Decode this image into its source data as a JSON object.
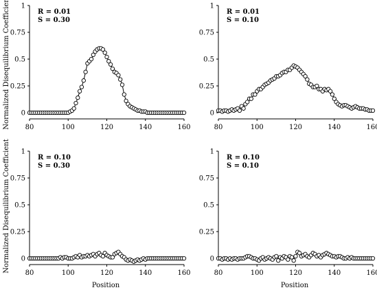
{
  "figure": {
    "ylabel": "Normalized Disequilibrium Coefficient",
    "xlabel": "Position"
  },
  "chart_data": [
    {
      "type": "line",
      "annotation": [
        "R  =  0.01",
        "S  =  0.30"
      ],
      "xlim": [
        80,
        160
      ],
      "ylim": [
        0,
        1
      ],
      "xticks": [
        80,
        100,
        120,
        140,
        160
      ],
      "yticks": [
        0,
        0.25,
        0.5,
        0.75,
        1
      ],
      "xtick_labels": [
        "80",
        "100",
        "120",
        "140",
        "160"
      ],
      "ytick_labels": [
        "0",
        "0.25",
        "0.5",
        "0.75",
        "1"
      ],
      "x": [
        80,
        81,
        82,
        83,
        84,
        85,
        86,
        87,
        88,
        89,
        90,
        91,
        92,
        93,
        94,
        95,
        96,
        97,
        98,
        99,
        100,
        101,
        102,
        103,
        104,
        105,
        106,
        107,
        108,
        109,
        110,
        111,
        112,
        113,
        114,
        115,
        116,
        117,
        118,
        119,
        120,
        121,
        122,
        123,
        124,
        125,
        126,
        127,
        128,
        129,
        130,
        131,
        132,
        133,
        134,
        135,
        136,
        137,
        138,
        139,
        140,
        141,
        142,
        143,
        144,
        145,
        146,
        147,
        148,
        149,
        150,
        151,
        152,
        153,
        154,
        155,
        156,
        157,
        158,
        159,
        160
      ],
      "y": [
        0,
        0,
        0,
        0,
        0,
        0,
        0,
        0,
        0,
        0,
        0,
        0,
        0,
        0,
        0,
        0,
        0,
        0,
        0,
        0,
        0,
        0.01,
        0.02,
        0.04,
        0.09,
        0.14,
        0.2,
        0.24,
        0.3,
        0.38,
        0.46,
        0.48,
        0.5,
        0.54,
        0.57,
        0.59,
        0.6,
        0.6,
        0.59,
        0.56,
        0.52,
        0.48,
        0.45,
        0.41,
        0.38,
        0.37,
        0.35,
        0.31,
        0.26,
        0.17,
        0.11,
        0.08,
        0.06,
        0.05,
        0.04,
        0.03,
        0.02,
        0.02,
        0.01,
        0.01,
        0.01,
        0,
        0,
        0,
        0,
        0,
        0,
        0,
        0,
        0,
        0,
        0,
        0,
        0,
        0,
        0,
        0,
        0,
        0,
        0,
        0
      ]
    },
    {
      "type": "line",
      "annotation": [
        "R  =  0.01",
        "S  =  0.10"
      ],
      "xlim": [
        80,
        160
      ],
      "ylim": [
        0,
        1
      ],
      "xticks": [
        80,
        100,
        120,
        140,
        160
      ],
      "yticks": [
        0,
        0.25,
        0.5,
        0.75,
        1
      ],
      "xtick_labels": [
        "80",
        "100",
        "120",
        "140",
        "160"
      ],
      "ytick_labels": [
        "0",
        "0.25",
        "0.5",
        "0.75",
        "1"
      ],
      "x": [
        80,
        81,
        82,
        83,
        84,
        85,
        86,
        87,
        88,
        89,
        90,
        91,
        92,
        93,
        94,
        95,
        96,
        97,
        98,
        99,
        100,
        101,
        102,
        103,
        104,
        105,
        106,
        107,
        108,
        109,
        110,
        111,
        112,
        113,
        114,
        115,
        116,
        117,
        118,
        119,
        120,
        121,
        122,
        123,
        124,
        125,
        126,
        127,
        128,
        129,
        130,
        131,
        132,
        133,
        134,
        135,
        136,
        137,
        138,
        139,
        140,
        141,
        142,
        143,
        144,
        145,
        146,
        147,
        148,
        149,
        150,
        151,
        152,
        153,
        154,
        155,
        156,
        157,
        158,
        159,
        160
      ],
      "y": [
        0.02,
        0.02,
        0.01,
        0.02,
        0.02,
        0.01,
        0.02,
        0.03,
        0.02,
        0.03,
        0.04,
        0.02,
        0.06,
        0.04,
        0.08,
        0.1,
        0.13,
        0.13,
        0.17,
        0.17,
        0.2,
        0.22,
        0.22,
        0.24,
        0.26,
        0.27,
        0.28,
        0.3,
        0.31,
        0.32,
        0.34,
        0.34,
        0.35,
        0.37,
        0.38,
        0.38,
        0.4,
        0.4,
        0.42,
        0.44,
        0.43,
        0.42,
        0.4,
        0.38,
        0.36,
        0.34,
        0.31,
        0.27,
        0.26,
        0.24,
        0.24,
        0.25,
        0.22,
        0.22,
        0.2,
        0.22,
        0.21,
        0.22,
        0.2,
        0.17,
        0.13,
        0.1,
        0.08,
        0.07,
        0.06,
        0.07,
        0.07,
        0.06,
        0.05,
        0.04,
        0.05,
        0.06,
        0.05,
        0.04,
        0.04,
        0.04,
        0.03,
        0.03,
        0.02,
        0.02,
        0.02
      ]
    },
    {
      "type": "line",
      "annotation": [
        "R  =  0.10",
        "S  =  0.30"
      ],
      "xlim": [
        80,
        160
      ],
      "ylim": [
        0,
        1
      ],
      "xticks": [
        80,
        100,
        120,
        140,
        160
      ],
      "yticks": [
        0,
        0.25,
        0.5,
        0.75,
        1
      ],
      "xtick_labels": [
        "80",
        "100",
        "120",
        "140",
        "160"
      ],
      "ytick_labels": [
        "0",
        "0.25",
        "0.5",
        "0.75",
        "1"
      ],
      "x": [
        80,
        81,
        82,
        83,
        84,
        85,
        86,
        87,
        88,
        89,
        90,
        91,
        92,
        93,
        94,
        95,
        96,
        97,
        98,
        99,
        100,
        101,
        102,
        103,
        104,
        105,
        106,
        107,
        108,
        109,
        110,
        111,
        112,
        113,
        114,
        115,
        116,
        117,
        118,
        119,
        120,
        121,
        122,
        123,
        124,
        125,
        126,
        127,
        128,
        129,
        130,
        131,
        132,
        133,
        134,
        135,
        136,
        137,
        138,
        139,
        140,
        141,
        142,
        143,
        144,
        145,
        146,
        147,
        148,
        149,
        150,
        151,
        152,
        153,
        154,
        155,
        156,
        157,
        158,
        159,
        160
      ],
      "y": [
        0,
        0,
        0,
        0,
        0,
        0,
        0,
        0,
        0,
        0,
        0,
        0,
        0,
        0,
        0,
        0,
        0.01,
        0,
        0.01,
        0.01,
        0,
        0,
        0,
        0.01,
        0.02,
        0.01,
        0.03,
        0.01,
        0.02,
        0.02,
        0.03,
        0.02,
        0.03,
        0.04,
        0.02,
        0.04,
        0.05,
        0.03,
        0.02,
        0.05,
        0.03,
        0.02,
        0.01,
        0.01,
        0.04,
        0.05,
        0.06,
        0.04,
        0.02,
        0.01,
        -0.01,
        -0.02,
        -0.01,
        -0.02,
        -0.03,
        -0.02,
        -0.01,
        -0.02,
        -0.01,
        0,
        -0.01,
        0,
        0,
        0,
        0,
        0,
        0,
        0,
        0,
        0,
        0,
        0,
        0,
        0,
        0,
        0,
        0,
        0,
        0,
        0,
        0
      ]
    },
    {
      "type": "line",
      "annotation": [
        "R  =  0.10",
        "S  =  0.10"
      ],
      "xlim": [
        80,
        160
      ],
      "ylim": [
        0,
        1
      ],
      "xticks": [
        80,
        100,
        120,
        140,
        160
      ],
      "yticks": [
        0,
        0.25,
        0.5,
        0.75,
        1
      ],
      "xtick_labels": [
        "80",
        "100",
        "120",
        "140",
        "160"
      ],
      "ytick_labels": [
        "0",
        "0.25",
        "0.5",
        "0.75",
        "1"
      ],
      "x": [
        80,
        81,
        82,
        83,
        84,
        85,
        86,
        87,
        88,
        89,
        90,
        91,
        92,
        93,
        94,
        95,
        96,
        97,
        98,
        99,
        100,
        101,
        102,
        103,
        104,
        105,
        106,
        107,
        108,
        109,
        110,
        111,
        112,
        113,
        114,
        115,
        116,
        117,
        118,
        119,
        120,
        121,
        122,
        123,
        124,
        125,
        126,
        127,
        128,
        129,
        130,
        131,
        132,
        133,
        134,
        135,
        136,
        137,
        138,
        139,
        140,
        141,
        142,
        143,
        144,
        145,
        146,
        147,
        148,
        149,
        150,
        151,
        152,
        153,
        154,
        155,
        156,
        157,
        158,
        159,
        160
      ],
      "y": [
        0,
        0,
        -0.01,
        0,
        0,
        -0.01,
        0,
        -0.01,
        0,
        0,
        -0.01,
        0,
        0,
        0,
        0.01,
        0.02,
        0.02,
        0.01,
        0,
        0,
        -0.01,
        -0.02,
        0,
        0.01,
        -0.01,
        0,
        0.01,
        0,
        -0.01,
        0.01,
        0.02,
        -0.02,
        0.01,
        0,
        0.02,
        0.01,
        -0.01,
        0.02,
        0.01,
        -0.02,
        0.02,
        0.06,
        0.05,
        0.02,
        0.03,
        0.04,
        0.02,
        0.01,
        0.03,
        0.05,
        0.04,
        0.02,
        0.03,
        0.01,
        0.03,
        0.04,
        0.05,
        0.04,
        0.03,
        0.02,
        0.02,
        0.01,
        0.02,
        0.02,
        0.01,
        0,
        0,
        0.01,
        0,
        0.01,
        0,
        0,
        0,
        0,
        0,
        0,
        0,
        0,
        0,
        0,
        0
      ]
    }
  ]
}
